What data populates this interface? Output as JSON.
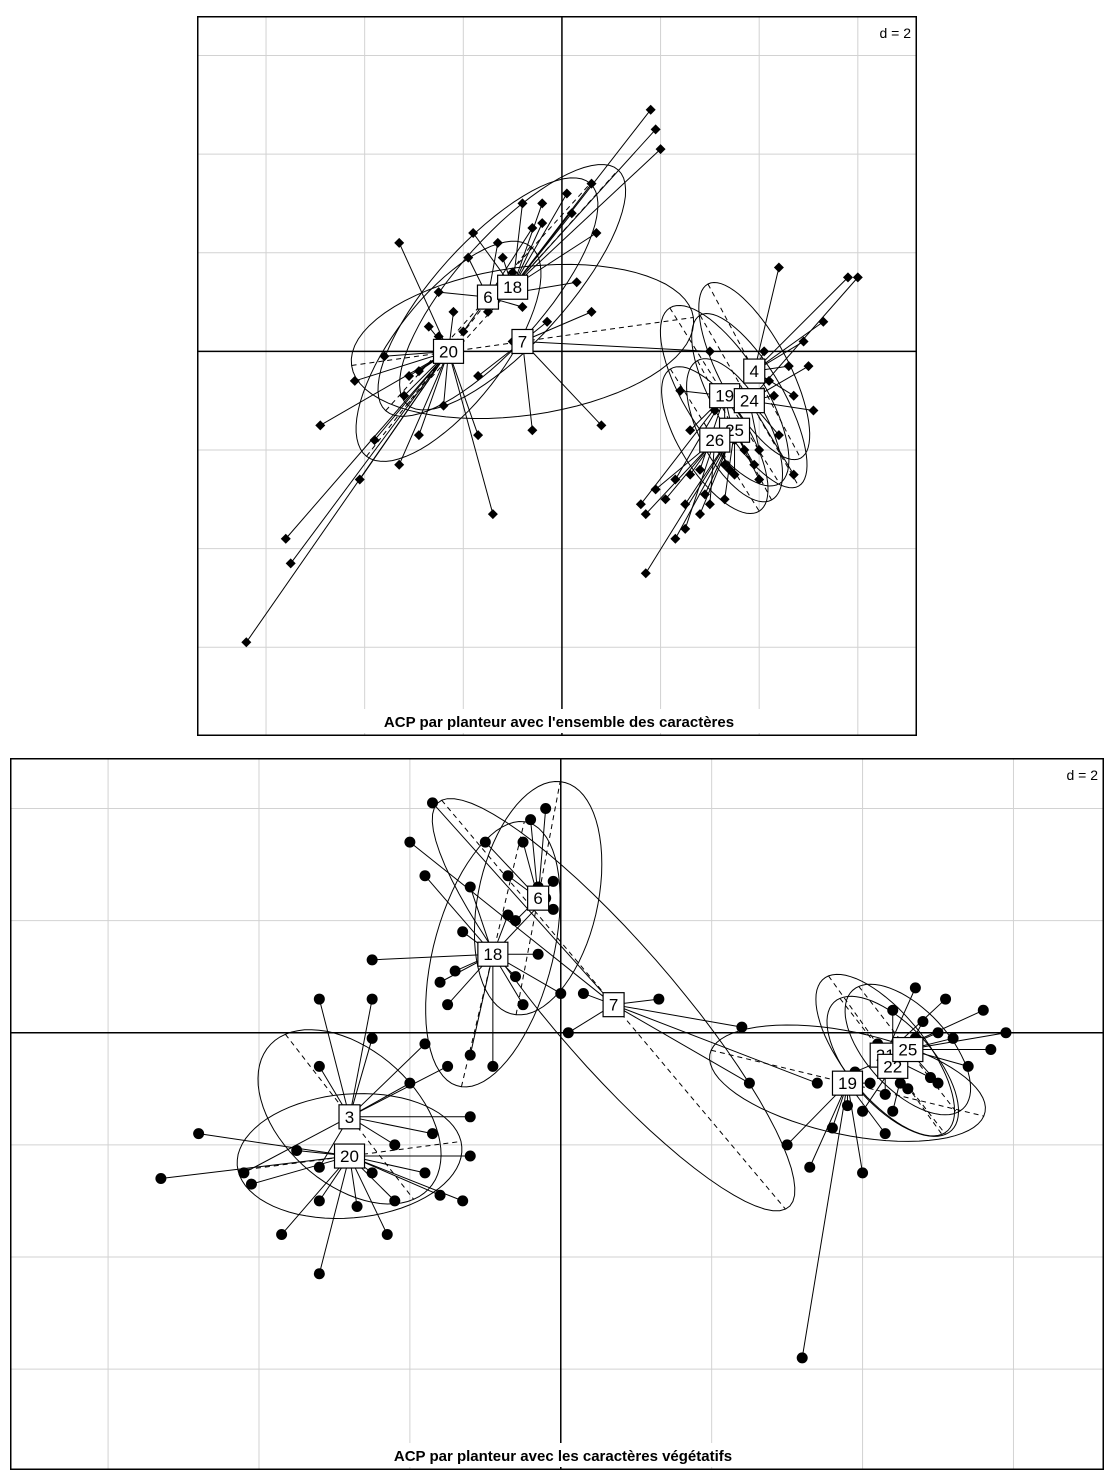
{
  "chart_data": [
    {
      "type": "scatter",
      "title": "ACP par planteur avec l'ensemble des caractères",
      "grid_label": "d = 2",
      "grid_step": 2,
      "xlim": [
        -7.4,
        7.2
      ],
      "ylim": [
        -7.8,
        6.8
      ],
      "grid": true,
      "groups": [
        {
          "name": "20",
          "cx": -2.3,
          "cy": 0.0,
          "rx": 2.7,
          "ry": 1.1,
          "angle": 52,
          "points": [
            [
              -6.4,
              -5.9
            ],
            [
              -5.5,
              -4.3
            ],
            [
              -5.6,
              -3.8
            ],
            [
              -4.1,
              -2.6
            ],
            [
              -4.9,
              -1.5
            ],
            [
              -4.2,
              -0.6
            ],
            [
              -3.6,
              -0.1
            ],
            [
              -3.2,
              -0.9
            ],
            [
              -3.8,
              -1.8
            ],
            [
              -3.3,
              -2.3
            ],
            [
              -2.9,
              -1.7
            ],
            [
              -2.4,
              -1.1
            ],
            [
              -2.9,
              -0.4
            ],
            [
              -2.5,
              0.3
            ],
            [
              -2.2,
              0.8
            ],
            [
              -3.3,
              2.2
            ],
            [
              -1.4,
              -3.3
            ],
            [
              -1.7,
              -1.7
            ],
            [
              -3.1,
              -0.5
            ],
            [
              -2.7,
              0.5
            ]
          ]
        },
        {
          "name": "6",
          "cx": -1.5,
          "cy": 1.1,
          "rx": 3.1,
          "ry": 1.1,
          "angle": 48,
          "points": [
            [
              -2.5,
              1.2
            ],
            [
              -1.9,
              1.9
            ],
            [
              -1.3,
              2.2
            ],
            [
              -1.0,
              1.6
            ],
            [
              -1.5,
              0.8
            ],
            [
              -2.0,
              0.4
            ],
            [
              -0.8,
              0.9
            ],
            [
              0.3,
              1.4
            ],
            [
              -0.6,
              2.5
            ]
          ]
        },
        {
          "name": "18",
          "cx": -1.0,
          "cy": 1.3,
          "rx": 3.2,
          "ry": 1.1,
          "angle": 48,
          "points": [
            [
              1.8,
              4.9
            ],
            [
              1.9,
              4.5
            ],
            [
              2.0,
              4.1
            ],
            [
              0.7,
              2.4
            ],
            [
              0.1,
              3.2
            ],
            [
              -0.4,
              3.0
            ],
            [
              -0.8,
              3.0
            ],
            [
              -1.8,
              2.4
            ],
            [
              -1.2,
              1.9
            ],
            [
              -0.4,
              2.6
            ],
            [
              0.6,
              3.4
            ],
            [
              0.2,
              2.8
            ]
          ]
        },
        {
          "name": "7",
          "cx": -0.8,
          "cy": 0.2,
          "rx": 3.5,
          "ry": 1.5,
          "angle": 8,
          "points": [
            [
              3.0,
              0.0
            ],
            [
              0.8,
              -1.5
            ],
            [
              0.6,
              0.8
            ],
            [
              -0.6,
              -1.6
            ],
            [
              -1.0,
              0.2
            ],
            [
              -1.7,
              -0.5
            ],
            [
              -0.3,
              0.6
            ]
          ]
        },
        {
          "name": "4",
          "cx": 3.9,
          "cy": -0.4,
          "rx": 2.0,
          "ry": 0.7,
          "angle": -62,
          "points": [
            [
              5.8,
              1.5
            ],
            [
              5.3,
              0.6
            ],
            [
              4.9,
              0.2
            ],
            [
              4.4,
              1.7
            ],
            [
              4.6,
              -0.3
            ],
            [
              4.2,
              -0.6
            ],
            [
              4.7,
              -0.9
            ],
            [
              4.1,
              0.0
            ]
          ]
        },
        {
          "name": "19",
          "cx": 3.3,
          "cy": -0.9,
          "rx": 2.1,
          "ry": 0.8,
          "angle": -58,
          "points": [
            [
              2.4,
              -0.8
            ],
            [
              2.6,
              -1.6
            ],
            [
              1.6,
              -3.1
            ],
            [
              2.3,
              -2.6
            ],
            [
              2.8,
              -2.4
            ],
            [
              3.3,
              -2.3
            ],
            [
              3.5,
              -1.8
            ],
            [
              3.1,
              -1.2
            ],
            [
              3.8,
              -1.0
            ]
          ]
        },
        {
          "name": "24",
          "cx": 3.8,
          "cy": -1.0,
          "rx": 2.0,
          "ry": 0.7,
          "angle": -60,
          "points": [
            [
              6.0,
              1.5
            ],
            [
              5.0,
              -0.3
            ],
            [
              4.3,
              -0.9
            ],
            [
              4.4,
              -1.7
            ],
            [
              4.0,
              -2.0
            ],
            [
              4.7,
              -2.5
            ],
            [
              5.1,
              -1.2
            ]
          ]
        },
        {
          "name": "25",
          "cx": 3.5,
          "cy": -1.6,
          "rx": 1.6,
          "ry": 0.7,
          "angle": -62,
          "points": [
            [
              1.7,
              -4.5
            ],
            [
              2.3,
              -3.8
            ],
            [
              3.5,
              -2.5
            ],
            [
              2.8,
              -3.3
            ],
            [
              3.3,
              -3.0
            ],
            [
              3.9,
              -2.3
            ],
            [
              2.5,
              -3.1
            ],
            [
              2.9,
              -2.9
            ],
            [
              3.7,
              -2.0
            ],
            [
              4.0,
              -2.6
            ]
          ]
        },
        {
          "name": "26",
          "cx": 3.1,
          "cy": -1.8,
          "rx": 1.7,
          "ry": 0.7,
          "angle": -58,
          "points": [
            [
              1.7,
              -3.3
            ],
            [
              2.1,
              -3.0
            ],
            [
              2.5,
              -3.6
            ],
            [
              3.0,
              -3.1
            ],
            [
              1.9,
              -2.8
            ],
            [
              2.6,
              -2.5
            ],
            [
              3.4,
              -2.4
            ]
          ]
        }
      ]
    },
    {
      "type": "scatter",
      "title": "ACP par planteur avec les caractères végétatifs",
      "grid_label": "d = 2",
      "grid_step": 2,
      "xlim": [
        -7.3,
        7.2
      ],
      "ylim": [
        -7.8,
        4.9
      ],
      "grid": true,
      "groups": [
        {
          "name": "3",
          "cx": -2.8,
          "cy": -1.5,
          "rx": 1.7,
          "ry": 1.0,
          "angle": -60,
          "points": [
            [
              -3.2,
              0.6
            ],
            [
              -2.5,
              0.6
            ],
            [
              -2.5,
              -0.1
            ],
            [
              -3.2,
              -0.6
            ],
            [
              -2.0,
              -0.9
            ],
            [
              -1.8,
              -0.2
            ],
            [
              -1.5,
              -0.6
            ],
            [
              -1.2,
              -1.5
            ],
            [
              -1.7,
              -1.8
            ],
            [
              -2.2,
              -2.0
            ],
            [
              -3.2,
              -2.4
            ],
            [
              -4.2,
              -2.5
            ]
          ]
        },
        {
          "name": "20",
          "cx": -2.8,
          "cy": -2.2,
          "rx": 1.5,
          "ry": 1.1,
          "angle": 10,
          "points": [
            [
              -4.8,
              -1.8
            ],
            [
              -5.3,
              -2.6
            ],
            [
              -4.1,
              -2.7
            ],
            [
              -3.7,
              -3.6
            ],
            [
              -3.2,
              -3.0
            ],
            [
              -3.2,
              -4.3
            ],
            [
              -2.3,
              -3.6
            ],
            [
              -2.2,
              -3.0
            ],
            [
              -1.8,
              -2.5
            ],
            [
              -1.3,
              -3.0
            ],
            [
              -1.2,
              -2.2
            ],
            [
              -3.5,
              -2.1
            ],
            [
              -2.5,
              -2.5
            ],
            [
              -2.7,
              -3.1
            ],
            [
              -1.6,
              -2.9
            ]
          ]
        },
        {
          "name": "18",
          "cx": -0.9,
          "cy": 1.4,
          "rx": 2.4,
          "ry": 0.8,
          "angle": 80,
          "points": [
            [
              -1.8,
              2.8
            ],
            [
              -1.2,
              2.6
            ],
            [
              -1.3,
              1.8
            ],
            [
              -1.5,
              0.5
            ],
            [
              -1.2,
              -0.4
            ],
            [
              -0.9,
              -0.6
            ],
            [
              -2.5,
              1.3
            ],
            [
              -1.4,
              1.1
            ],
            [
              -0.6,
              1.0
            ],
            [
              -0.5,
              0.5
            ],
            [
              -0.7,
              2.1
            ],
            [
              -0.3,
              1.4
            ],
            [
              0.0,
              0.7
            ],
            [
              -1.6,
              0.9
            ],
            [
              -0.2,
              2.4
            ]
          ]
        },
        {
          "name": "6",
          "cx": -0.3,
          "cy": 2.4,
          "rx": 2.1,
          "ry": 0.8,
          "angle": 82,
          "points": [
            [
              -0.2,
              4.0
            ],
            [
              -0.7,
              2.8
            ],
            [
              -0.5,
              3.4
            ],
            [
              -0.3,
              2.6
            ],
            [
              -0.1,
              2.2
            ],
            [
              -0.6,
              2.0
            ],
            [
              -1.0,
              3.4
            ],
            [
              -0.1,
              2.7
            ],
            [
              -0.4,
              3.8
            ]
          ]
        },
        {
          "name": "7",
          "cx": 0.7,
          "cy": 0.5,
          "rx": 4.3,
          "ry": 0.9,
          "angle": -58,
          "points": [
            [
              -1.7,
              4.1
            ],
            [
              -2.0,
              3.4
            ],
            [
              0.1,
              0.0
            ],
            [
              2.4,
              0.1
            ],
            [
              3.4,
              -0.9
            ],
            [
              2.5,
              -0.9
            ],
            [
              0.3,
              0.7
            ],
            [
              1.3,
              0.6
            ]
          ]
        },
        {
          "name": "19",
          "cx": 3.8,
          "cy": -0.9,
          "rx": 1.9,
          "ry": 0.9,
          "angle": -18,
          "points": [
            [
              3.2,
              -5.8
            ],
            [
              3.0,
              -2.0
            ],
            [
              3.3,
              -2.4
            ],
            [
              3.6,
              -1.7
            ],
            [
              4.0,
              -2.5
            ],
            [
              4.3,
              -1.8
            ],
            [
              4.1,
              -0.9
            ],
            [
              3.8,
              -1.3
            ]
          ]
        },
        {
          "name": "21",
          "cx": 4.3,
          "cy": -0.4,
          "rx": 1.6,
          "ry": 0.6,
          "angle": -62,
          "points": [
            [
              4.7,
              0.8
            ],
            [
              5.1,
              0.6
            ],
            [
              5.6,
              0.4
            ],
            [
              5.0,
              0.0
            ],
            [
              4.5,
              -0.5
            ],
            [
              4.9,
              -0.8
            ],
            [
              4.3,
              -1.1
            ]
          ]
        },
        {
          "name": "22",
          "cx": 4.4,
          "cy": -0.6,
          "rx": 1.4,
          "ry": 0.6,
          "angle": -60,
          "points": [
            [
              4.4,
              0.4
            ],
            [
              4.2,
              -0.2
            ],
            [
              4.6,
              -1.0
            ],
            [
              4.0,
              -1.4
            ],
            [
              4.7,
              -0.1
            ]
          ]
        },
        {
          "name": "25",
          "cx": 4.6,
          "cy": -0.3,
          "rx": 1.3,
          "ry": 0.6,
          "angle": -60,
          "points": [
            [
              5.2,
              -0.1
            ],
            [
              5.9,
              0.0
            ],
            [
              5.7,
              -0.3
            ],
            [
              5.4,
              -0.6
            ],
            [
              5.0,
              -0.9
            ],
            [
              4.8,
              0.2
            ],
            [
              4.3,
              -0.3
            ],
            [
              3.9,
              -0.7
            ],
            [
              4.5,
              -0.9
            ],
            [
              4.4,
              -1.4
            ]
          ]
        }
      ]
    }
  ]
}
